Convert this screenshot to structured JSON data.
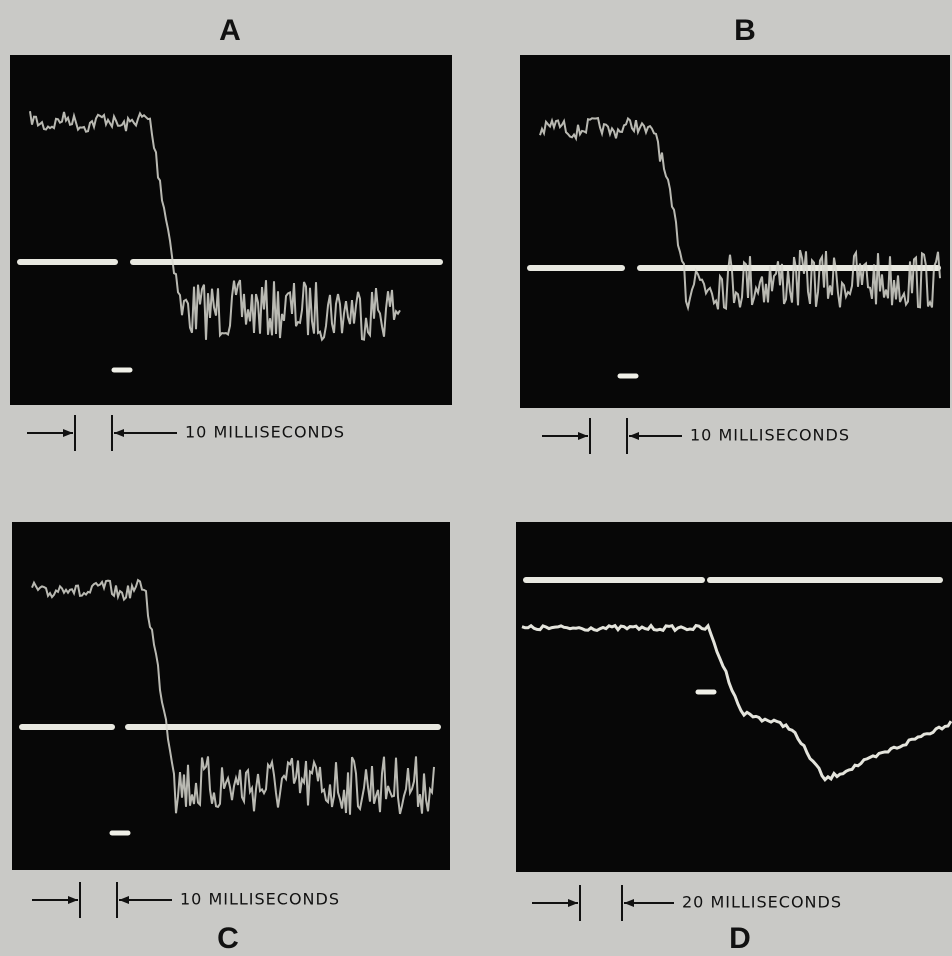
{
  "panels": [
    {
      "label": "A",
      "scale": "10 MILLISECONDS"
    },
    {
      "label": "B",
      "scale": "10 MILLISECONDS"
    },
    {
      "label": "C",
      "scale": "10 MILLISECONDS"
    },
    {
      "label": "D",
      "scale": "20 MILLISECONDS"
    }
  ]
}
